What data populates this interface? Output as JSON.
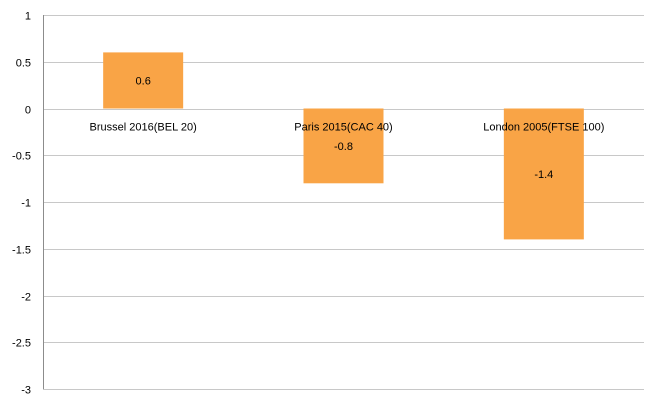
{
  "chart_data": {
    "type": "bar",
    "title": "",
    "xlabel": "",
    "ylabel": "",
    "categories": [
      "Brussel 2016(BEL 20)",
      "Paris 2015(CAC 40)",
      "London 2005(FTSE 100)"
    ],
    "values": [
      0.6,
      -0.8,
      -1.4
    ],
    "data_labels": [
      "0.6",
      "-0.8",
      "-1.4"
    ],
    "ylim": [
      -3,
      1
    ],
    "yticks": [
      1,
      0.5,
      0,
      -0.5,
      -1,
      -1.5,
      -2,
      -2.5,
      -3
    ],
    "ytick_labels": [
      "1",
      "0.5",
      "0",
      "-0.5",
      "-1",
      "-1.5",
      "-2",
      "-2.5",
      "-3"
    ],
    "grid": true,
    "legend": "none",
    "bar_color": "#f9a446",
    "category_label_position": "at zero line"
  }
}
